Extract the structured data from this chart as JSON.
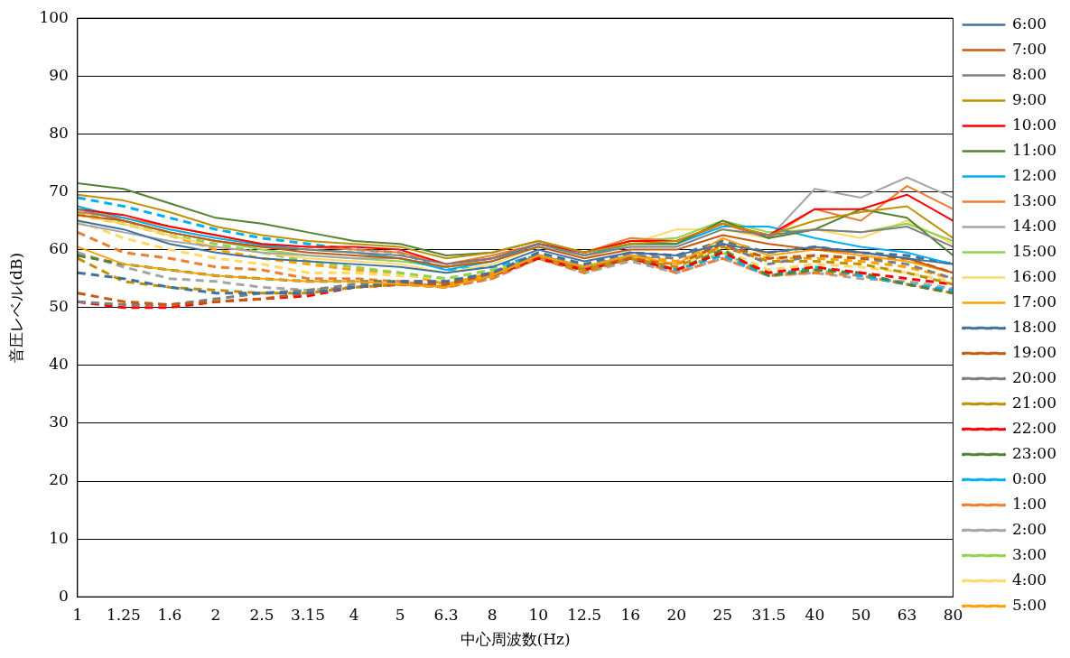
{
  "chart_data": {
    "type": "line",
    "xlabel": "中心周波数(Hz)",
    "ylabel": "音圧レベル(dB)",
    "categories": [
      "1",
      "1.25",
      "1.6",
      "2",
      "2.5",
      "3.15",
      "4",
      "5",
      "6.3",
      "8",
      "10",
      "12.5",
      "16",
      "20",
      "25",
      "31.5",
      "40",
      "50",
      "63",
      "80"
    ],
    "ylim": [
      0,
      100
    ],
    "yticks": [
      0,
      10,
      20,
      30,
      40,
      50,
      60,
      70,
      80,
      90,
      100
    ],
    "grid": "y",
    "legend": "right",
    "marker": "none",
    "series": [
      {
        "name": "6:00",
        "color": "#41719c",
        "line_style": "solid",
        "values": [
          65,
          63.5,
          61,
          59.5,
          58.5,
          58,
          57.5,
          57,
          56,
          57,
          60,
          58,
          59.5,
          59,
          61,
          59.5,
          60.5,
          59.5,
          58.5,
          57.5
        ]
      },
      {
        "name": "7:00",
        "color": "#c55a11",
        "line_style": "solid",
        "values": [
          66,
          65,
          63,
          61.5,
          60.5,
          59.5,
          59,
          58.5,
          57,
          58,
          60.5,
          58.5,
          60,
          60,
          62.5,
          61,
          60,
          59.5,
          58.5,
          56
        ]
      },
      {
        "name": "8:00",
        "color": "#7f7f7f",
        "line_style": "solid",
        "values": [
          67,
          65,
          63,
          61.5,
          60.5,
          60,
          59.5,
          59,
          57.5,
          58.5,
          61,
          59,
          60.5,
          60.5,
          63.5,
          62.5,
          63.5,
          63,
          64,
          60.5
        ]
      },
      {
        "name": "9:00",
        "color": "#bf9000",
        "line_style": "solid",
        "values": [
          69.5,
          68.5,
          66.5,
          64,
          62.5,
          61.5,
          61,
          60.5,
          58.5,
          59.5,
          61.5,
          59.5,
          61,
          61.5,
          64.5,
          62.5,
          65,
          66.5,
          67.5,
          62
        ]
      },
      {
        "name": "10:00",
        "color": "#ff0000",
        "line_style": "solid",
        "values": [
          67,
          66,
          64,
          62.5,
          61,
          60.5,
          60.5,
          60,
          57.5,
          58.5,
          61,
          59.5,
          61.5,
          61.5,
          64.5,
          62.5,
          67,
          67,
          69.5,
          65
        ]
      },
      {
        "name": "11:00",
        "color": "#548235",
        "line_style": "solid",
        "values": [
          71.5,
          70.5,
          68,
          65.5,
          64.5,
          63,
          61.5,
          61,
          59,
          59.5,
          61.5,
          59.5,
          61,
          61,
          65,
          62,
          63.5,
          67,
          65.5,
          59
        ]
      },
      {
        "name": "12:00",
        "color": "#00b0f0",
        "line_style": "solid",
        "values": [
          67.5,
          65.5,
          63.5,
          62,
          60.8,
          60,
          59.5,
          58.5,
          56.5,
          58,
          61,
          59,
          61,
          61,
          64,
          64,
          62,
          60.5,
          59.5,
          57.5
        ]
      },
      {
        "name": "13:00",
        "color": "#ed7d31",
        "line_style": "solid",
        "values": [
          66.5,
          65.5,
          64,
          62.5,
          61,
          60.5,
          60,
          59.5,
          57.5,
          59,
          61,
          59.5,
          62,
          61.5,
          64.5,
          62,
          67,
          65,
          71,
          67
        ]
      },
      {
        "name": "14:00",
        "color": "#a5a5a5",
        "line_style": "solid",
        "values": [
          64.5,
          63,
          61.5,
          60.5,
          59.5,
          59,
          58.5,
          58.5,
          57,
          58,
          60.5,
          59,
          61,
          61,
          64.5,
          62,
          70.5,
          69,
          72.5,
          69
        ]
      },
      {
        "name": "15:00",
        "color": "#92d050",
        "line_style": "solid",
        "values": [
          67.5,
          65,
          63,
          61.5,
          60,
          59,
          58.5,
          58,
          57,
          58.5,
          61,
          59.5,
          61.5,
          62,
          65,
          63,
          63.5,
          63,
          64.5,
          61.5
        ]
      },
      {
        "name": "16:00",
        "color": "#ffd966",
        "line_style": "solid",
        "values": [
          66,
          64.5,
          62.5,
          60.5,
          59.5,
          58.5,
          58,
          57.5,
          56,
          57.5,
          60.5,
          58.5,
          61,
          63.5,
          63.5,
          62,
          63.5,
          62,
          65,
          61
        ]
      },
      {
        "name": "17:00",
        "color": "#ffa000",
        "line_style": "solid",
        "values": [
          60.5,
          57.5,
          56.5,
          55.5,
          55,
          54.5,
          54.5,
          54,
          53.5,
          55.5,
          59,
          57,
          59,
          57.5,
          62,
          59,
          60,
          59,
          58,
          56
        ]
      },
      {
        "name": "18:00",
        "color": "#41719c",
        "line_style": "dashed",
        "values": [
          56,
          55,
          53.5,
          52.5,
          52.5,
          52.5,
          53.5,
          54.5,
          54.5,
          56,
          59.5,
          57.5,
          59.5,
          59,
          61.5,
          59.5,
          60.5,
          59.5,
          59,
          57.5
        ]
      },
      {
        "name": "19:00",
        "color": "#c55a11",
        "line_style": "dashed",
        "values": [
          52.5,
          51,
          50.5,
          51,
          51.5,
          52.5,
          53.5,
          54,
          54,
          55.5,
          59,
          57,
          58.5,
          57.5,
          61,
          58.5,
          59,
          58.5,
          58.5,
          56
        ]
      },
      {
        "name": "20:00",
        "color": "#7f7f7f",
        "line_style": "dashed",
        "values": [
          51,
          50.5,
          50.5,
          51.5,
          52.5,
          53,
          54,
          54.5,
          54.5,
          56,
          59,
          57,
          59,
          58.5,
          61,
          57.5,
          59,
          58.5,
          57.5,
          55
        ]
      },
      {
        "name": "21:00",
        "color": "#bf9000",
        "line_style": "dashed",
        "values": [
          58.5,
          54.5,
          53.5,
          53,
          52.5,
          52.5,
          53.5,
          54,
          53.5,
          55.5,
          59,
          56.5,
          58.5,
          57,
          60.5,
          58,
          58,
          57.5,
          56,
          54
        ]
      },
      {
        "name": "22:00",
        "color": "#ff0000",
        "line_style": "dashed",
        "values": [
          51,
          50,
          50,
          51,
          51.5,
          52,
          53.5,
          54,
          54,
          55.5,
          58.5,
          56.5,
          58.5,
          56.5,
          59.5,
          56,
          57,
          56,
          55,
          54
        ]
      },
      {
        "name": "23:00",
        "color": "#548235",
        "line_style": "dashed",
        "values": [
          59,
          57.5,
          56.5,
          55.5,
          55,
          54.5,
          54.5,
          54.5,
          54,
          55.5,
          58.5,
          56.5,
          58.5,
          56.5,
          60,
          55.5,
          56.5,
          56,
          54,
          52.5
        ]
      },
      {
        "name": "0:00",
        "color": "#00b0f0",
        "line_style": "dashed",
        "values": [
          69,
          67.5,
          65.5,
          63.5,
          62,
          61,
          60,
          59.5,
          56.5,
          57,
          59,
          57,
          58.5,
          56.5,
          59,
          55.5,
          57,
          55.5,
          54,
          53
        ]
      },
      {
        "name": "1:00",
        "color": "#ed7d31",
        "line_style": "dashed",
        "values": [
          63,
          59.5,
          58.5,
          57,
          56.5,
          55,
          55,
          54.5,
          53.5,
          55,
          58.5,
          56,
          58.5,
          56,
          58.5,
          55.5,
          56,
          55.5,
          54,
          52.5
        ]
      },
      {
        "name": "2:00",
        "color": "#a5a5a5",
        "line_style": "dashed",
        "values": [
          59.5,
          57,
          55,
          54.5,
          53.5,
          53,
          53.5,
          54,
          53.5,
          55,
          58.5,
          56,
          58,
          56,
          58.5,
          55.5,
          56,
          55,
          54.5,
          53.3
        ]
      },
      {
        "name": "3:00",
        "color": "#92d050",
        "line_style": "dashed",
        "values": [
          66.5,
          64.5,
          62.5,
          61,
          59.5,
          58,
          57,
          56,
          55,
          56.5,
          58.5,
          56,
          58.5,
          56.5,
          59.5,
          55.5,
          56.5,
          55.5,
          54,
          52.5
        ]
      },
      {
        "name": "4:00",
        "color": "#ffd966",
        "line_style": "dashed",
        "values": [
          65,
          62,
          60,
          58.5,
          57.5,
          56,
          56,
          55.5,
          55,
          56.5,
          58.5,
          56.5,
          58.5,
          57.5,
          60,
          56.5,
          57.5,
          57,
          56,
          54.5
        ]
      },
      {
        "name": "5:00",
        "color": "#ffa000",
        "line_style": "dashed",
        "values": [
          66,
          64.5,
          62.5,
          60,
          58.5,
          57.5,
          56.5,
          56,
          54,
          56,
          59,
          57,
          59,
          58,
          60.5,
          58.5,
          58.5,
          58,
          57,
          55
        ]
      }
    ]
  }
}
